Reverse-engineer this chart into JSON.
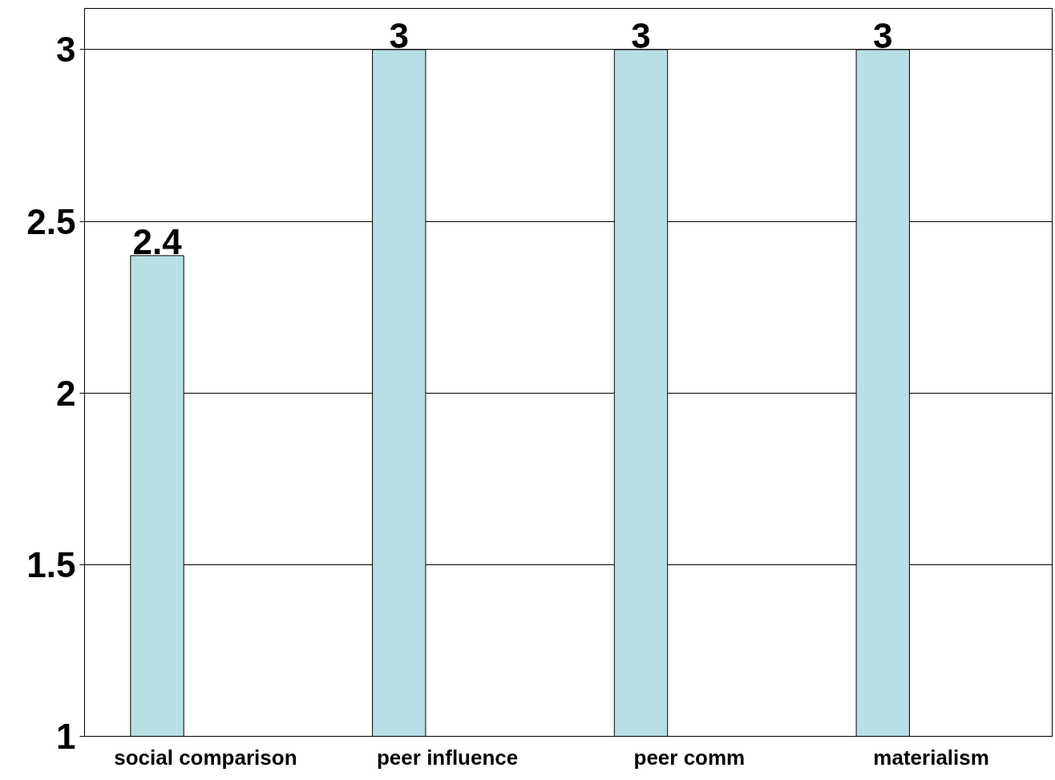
{
  "chart_data": {
    "type": "bar",
    "categories": [
      "social comparison",
      "peer influence",
      "peer comm",
      "materialism"
    ],
    "values": [
      2.4,
      3,
      3,
      3
    ],
    "color": "#b8dfe3",
    "ylim": [
      1,
      3.12
    ],
    "yticks": [
      1,
      1.5,
      2,
      2.5,
      3
    ],
    "grid": "y",
    "data_labels": true
  }
}
